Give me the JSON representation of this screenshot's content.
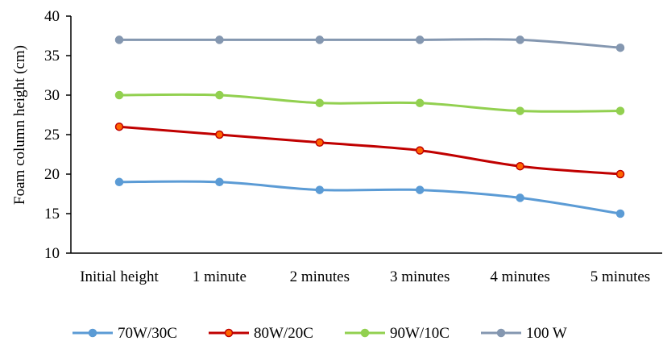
{
  "chart_data": {
    "type": "line",
    "title": "",
    "xlabel": "",
    "ylabel": "Foam column height (cm)",
    "ylim": [
      10,
      40
    ],
    "yticks": [
      10,
      15,
      20,
      25,
      30,
      35,
      40
    ],
    "grid": false,
    "smooth": true,
    "legend_position": "bottom",
    "categories": [
      "Initial height",
      "1 minute",
      "2 minutes",
      "3 minutes",
      "4 minutes",
      "5 minutes"
    ],
    "series": [
      {
        "name": "70W/30C",
        "color": "#5B9BD5",
        "marker_fill": "#5B9BD5",
        "values": [
          19,
          19,
          18,
          18,
          17,
          15
        ]
      },
      {
        "name": "80W/20C",
        "color": "#C00000",
        "marker_fill": "#FF6600",
        "values": [
          26,
          25,
          24,
          23,
          21,
          20
        ]
      },
      {
        "name": "90W/10C",
        "color": "#92D050",
        "marker_fill": "#92D050",
        "values": [
          30,
          30,
          29,
          29,
          28,
          28
        ]
      },
      {
        "name": "100 W",
        "color": "#8497B0",
        "marker_fill": "#8497B0",
        "values": [
          37,
          37,
          37,
          37,
          37,
          36
        ]
      }
    ]
  }
}
